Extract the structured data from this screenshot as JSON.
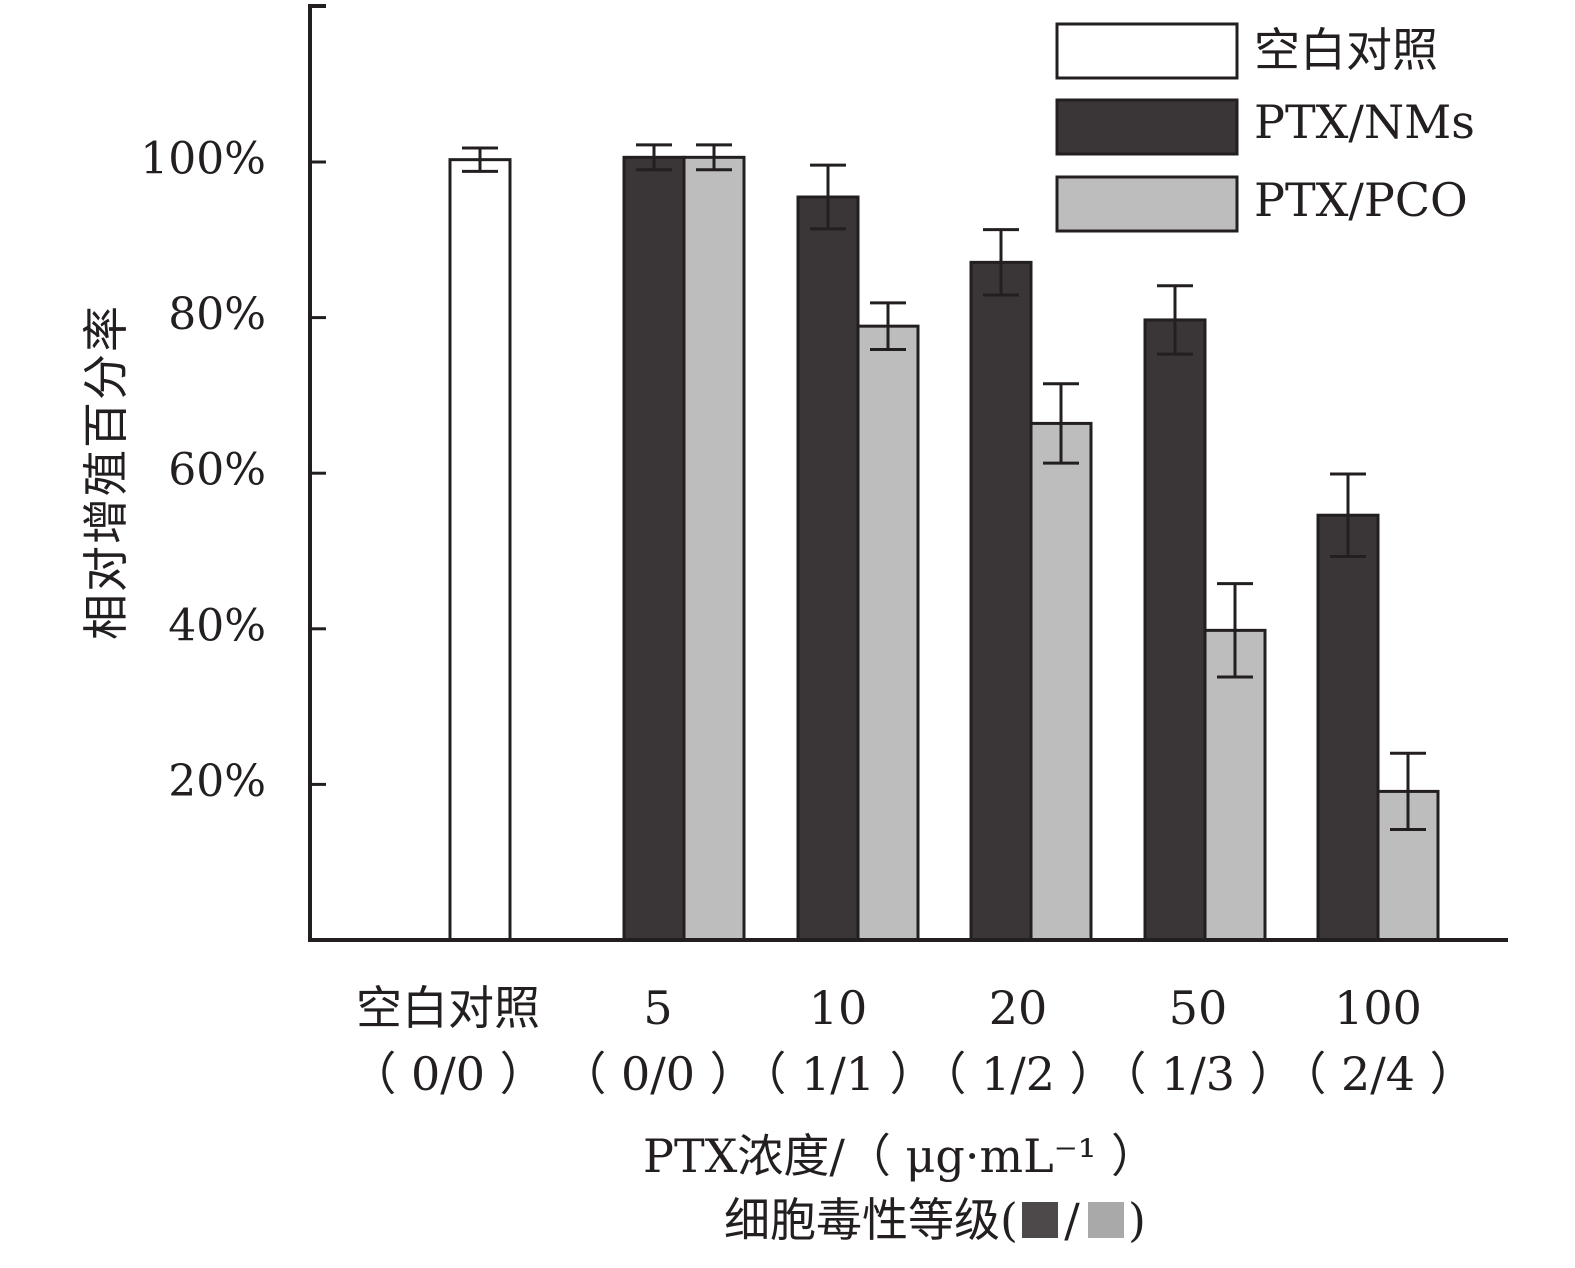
{
  "chart_data": {
    "type": "bar",
    "ylabel": "相对增殖百分率",
    "xlabel_line1": "PTX浓度/（ μg·mL⁻¹ ）",
    "xlabel_line2_prefix": "细胞毒性等级(",
    "xlabel_line2_sep": "/",
    "xlabel_line2_suffix": ")",
    "yticks": [
      20,
      40,
      60,
      80,
      100
    ],
    "ytick_labels": [
      "20%",
      "40%",
      "60%",
      "80%",
      "100%"
    ],
    "ylim": [
      0,
      120
    ],
    "grid": false,
    "legend_position": "top-right",
    "categories": [
      {
        "label": "空白对照",
        "sub": "（ 0/0 ）"
      },
      {
        "label": "5",
        "sub": "（ 0/0 ）"
      },
      {
        "label": "10",
        "sub": "（ 1/1 ）"
      },
      {
        "label": "20",
        "sub": "（ 1/2 ）"
      },
      {
        "label": "50",
        "sub": "（ 1/3 ）"
      },
      {
        "label": "100",
        "sub": "（ 2/4 ）"
      }
    ],
    "series": [
      {
        "name": "空白对照",
        "color": "#ffffff",
        "values": [
          100.3,
          null,
          null,
          null,
          null,
          null
        ],
        "errors": [
          1.5,
          null,
          null,
          null,
          null,
          null
        ]
      },
      {
        "name": "PTX/NMs",
        "color": "#3a3536",
        "values": [
          null,
          100.6,
          95.5,
          87.1,
          79.7,
          54.6
        ],
        "errors": [
          null,
          1.6,
          4.1,
          4.2,
          4.4,
          5.3
        ]
      },
      {
        "name": "PTX/PCO",
        "color": "#bdbdbd",
        "values": [
          null,
          100.6,
          78.9,
          66.4,
          39.8,
          19.1
        ],
        "errors": [
          null,
          1.6,
          3.0,
          5.1,
          6.0,
          4.9
        ]
      }
    ],
    "swatch_colors": [
      "#4d4849",
      "#a9a9a9"
    ]
  }
}
